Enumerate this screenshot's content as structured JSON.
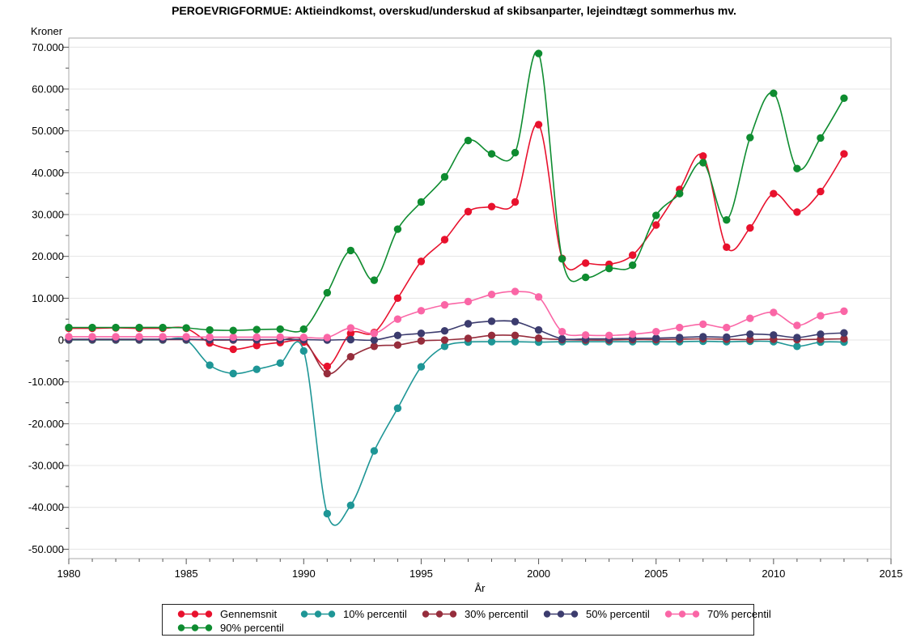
{
  "title": "PEROEVRIGFORMUE: Aktieindkomst, overskud/underskud af skibsanparter, lejeindtægt sommerhus mv.",
  "chart_data": {
    "type": "line",
    "title": "PEROEVRIGFORMUE: Aktieindkomst, overskud/underskud af skibsanparter, lejeindtægt sommerhus mv.",
    "ylabel": "Kroner",
    "xlabel": "År",
    "ylim": [
      -50000,
      70000
    ],
    "xlim": [
      1980,
      2015
    ],
    "grid": "horizontal",
    "legend_position": "bottom",
    "y_ticks": [
      -50000,
      -40000,
      -30000,
      -20000,
      -10000,
      0,
      10000,
      20000,
      30000,
      40000,
      50000,
      60000,
      70000
    ],
    "y_tick_labels": [
      "-50.000",
      "-40.000",
      "-30.000",
      "-20.000",
      "-10.000",
      "0",
      "10.000",
      "20.000",
      "30.000",
      "40.000",
      "50.000",
      "60.000",
      "70.000"
    ],
    "x_ticks": [
      1980,
      1985,
      1990,
      1995,
      2000,
      2005,
      2010,
      2015
    ],
    "x": [
      1980,
      1981,
      1982,
      1983,
      1984,
      1985,
      1986,
      1987,
      1988,
      1989,
      1990,
      1991,
      1992,
      1993,
      1994,
      1995,
      1996,
      1997,
      1998,
      1999,
      2000,
      2001,
      2002,
      2003,
      2004,
      2005,
      2006,
      2007,
      2008,
      2009,
      2010,
      2011,
      2012,
      2013
    ],
    "series": [
      {
        "name": "Gennemsnit",
        "color": "#e8112d",
        "values": [
          2800,
          2800,
          2900,
          2800,
          2800,
          2800,
          -700,
          -2200,
          -1300,
          -600,
          -500,
          -6300,
          1600,
          1800,
          10000,
          18800,
          24000,
          30700,
          31900,
          33000,
          51500,
          19500,
          18400,
          18100,
          20300,
          27500,
          36000,
          44000,
          22200,
          26800,
          35000,
          30600,
          35500,
          44500
        ]
      },
      {
        "name": "10% percentil",
        "color": "#1e9696",
        "values": [
          0,
          0,
          0,
          0,
          0,
          0,
          -6000,
          -8000,
          -7000,
          -5500,
          -2600,
          -41500,
          -39500,
          -26500,
          -16300,
          -6400,
          -1500,
          -500,
          -400,
          -400,
          -500,
          -400,
          -400,
          -400,
          -400,
          -400,
          -400,
          -300,
          -400,
          -300,
          -400,
          -1500,
          -500,
          -500
        ]
      },
      {
        "name": "30% percentil",
        "color": "#962d3c",
        "values": [
          100,
          100,
          100,
          100,
          100,
          100,
          0,
          0,
          0,
          0,
          0,
          -8000,
          -4000,
          -1500,
          -1200,
          -200,
          0,
          400,
          1100,
          1100,
          450,
          100,
          0,
          0,
          100,
          100,
          200,
          300,
          200,
          100,
          200,
          100,
          200,
          300
        ]
      },
      {
        "name": "50% percentil",
        "color": "#3c3c6e",
        "values": [
          200,
          200,
          200,
          200,
          200,
          200,
          100,
          100,
          100,
          100,
          100,
          0,
          100,
          0,
          1100,
          1600,
          2200,
          3900,
          4500,
          4400,
          2400,
          300,
          300,
          300,
          400,
          450,
          600,
          800,
          700,
          1400,
          1200,
          600,
          1400,
          1700
        ]
      },
      {
        "name": "70% percentil",
        "color": "#fa66a6",
        "values": [
          800,
          800,
          800,
          800,
          800,
          800,
          700,
          700,
          700,
          700,
          650,
          600,
          2900,
          1600,
          5000,
          7000,
          8400,
          9200,
          10900,
          11600,
          10300,
          2000,
          1200,
          1100,
          1400,
          2000,
          3000,
          3800,
          3000,
          5200,
          6600,
          3500,
          5800,
          6900
        ]
      },
      {
        "name": "90% percentil",
        "color": "#0e8c30",
        "values": [
          3000,
          3000,
          3000,
          3000,
          3000,
          2900,
          2400,
          2300,
          2500,
          2600,
          2600,
          11300,
          21400,
          14300,
          26500,
          33000,
          39000,
          47700,
          44500,
          44800,
          68500,
          19400,
          15000,
          17100,
          17900,
          29800,
          35000,
          42400,
          28700,
          48400,
          59000,
          41000,
          48300,
          57800
        ]
      }
    ]
  }
}
